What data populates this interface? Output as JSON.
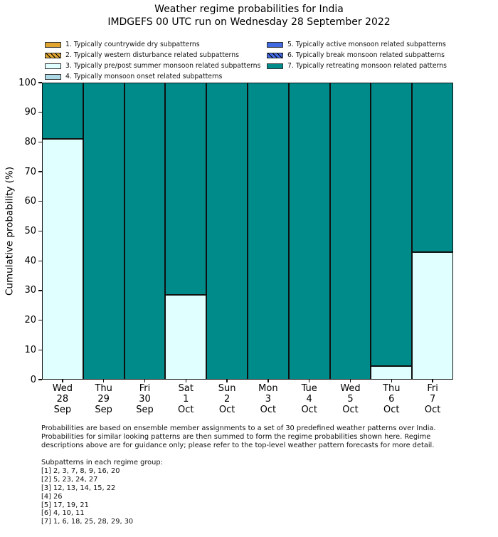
{
  "title": {
    "line1": "Weather regime probabilities for India",
    "line2": "IMDGEFS 00 UTC run on Wednesday 28 September 2022"
  },
  "chart_data": {
    "type": "bar",
    "stacked": true,
    "title": "Weather regime probabilities for India",
    "subtitle": "IMDGEFS 00 UTC run on Wednesday 28 September 2022",
    "xlabel": "",
    "ylabel": "Cumulative probability (%)",
    "ylim": [
      0,
      100
    ],
    "yticks": [
      0,
      10,
      20,
      30,
      40,
      50,
      60,
      70,
      80,
      90,
      100
    ],
    "grid": false,
    "legend_position": "top",
    "bar_edge_color": "#101010",
    "categories": [
      [
        "Wed",
        "28",
        "Sep"
      ],
      [
        "Thu",
        "29",
        "Sep"
      ],
      [
        "Fri",
        "30",
        "Sep"
      ],
      [
        "Sat",
        "1",
        "Oct"
      ],
      [
        "Sun",
        "2",
        "Oct"
      ],
      [
        "Mon",
        "3",
        "Oct"
      ],
      [
        "Tue",
        "4",
        "Oct"
      ],
      [
        "Wed",
        "5",
        "Oct"
      ],
      [
        "Thu",
        "6",
        "Oct"
      ],
      [
        "Fri",
        "7",
        "Oct"
      ]
    ],
    "series": [
      {
        "name": "1. Typically countrywide dry subpatterns",
        "color": "#DFA42D",
        "hatch": false,
        "values": [
          0,
          0,
          0,
          0,
          0,
          0,
          0,
          0,
          0,
          0
        ]
      },
      {
        "name": "2. Typically western disturbance related subpatterns",
        "color": "#DFA42D",
        "hatch": true,
        "values": [
          0,
          0,
          0,
          0,
          0,
          0,
          0,
          0,
          0,
          0
        ]
      },
      {
        "name": "3. Typically pre/post summer monsoon related subpatterns",
        "color": "#E0FFFF",
        "hatch": false,
        "values": [
          81,
          0,
          0,
          28.5,
          0,
          0,
          0,
          0,
          4.5,
          43
        ]
      },
      {
        "name": "4. Typically monsoon onset related subpatterns",
        "color": "#ADD8E6",
        "hatch": false,
        "values": [
          0,
          0,
          0,
          0,
          0,
          0,
          0,
          0,
          0,
          0
        ]
      },
      {
        "name": "5. Typically active monsoon related subpatterns",
        "color": "#4169E1",
        "hatch": false,
        "values": [
          0,
          0,
          0,
          0,
          0,
          0,
          0,
          0,
          0,
          0
        ]
      },
      {
        "name": "6. Typically break monsoon related subpatterns",
        "color": "#4169E1",
        "hatch": true,
        "values": [
          0,
          0,
          0,
          0,
          0,
          0,
          0,
          0,
          0,
          0
        ]
      },
      {
        "name": "7. Typically retreating monsoon related patterns",
        "color": "#008B8B",
        "hatch": false,
        "values": [
          19,
          100,
          100,
          71.5,
          100,
          100,
          100,
          100,
          95.5,
          57
        ]
      }
    ]
  },
  "notes": {
    "lines": [
      "Probabilities are based on ensemble member assignments to a set of 30 predefined weather patterns over India.",
      "Probabilities for similar looking patterns are then summed to form the regime probabilities shown here. Regime",
      "descriptions above are for guidance only; please refer to the top-level weather pattern forecasts for more detail."
    ]
  },
  "subpatterns": {
    "title": "Subpatterns in each regime group:",
    "groups": [
      "[1] 2, 3, 7, 8, 9, 16, 20",
      "[2] 5, 23, 24, 27",
      "[3] 12, 13, 14, 15, 22",
      "[4] 26",
      "[5] 17, 19, 21",
      "[6] 4, 10, 11",
      "[7] 1, 6, 18, 25, 28, 29, 30"
    ]
  }
}
